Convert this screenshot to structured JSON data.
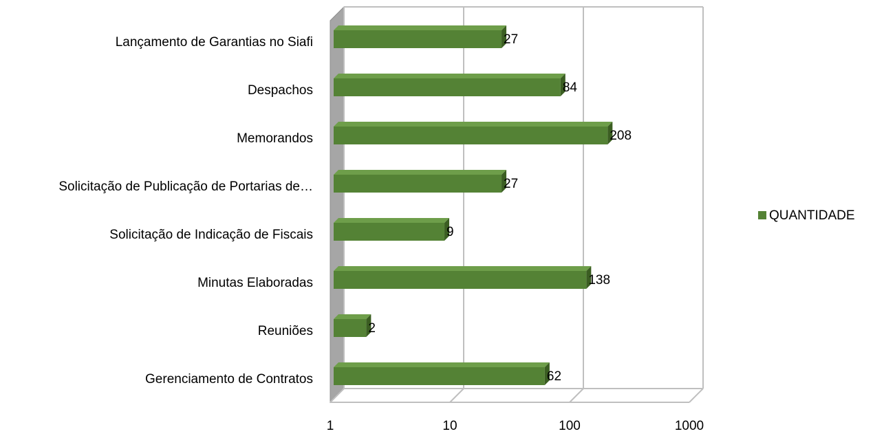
{
  "chart_data": {
    "type": "bar3d_horizontal",
    "categories": [
      "Lançamento de Garantias no Siafi",
      "Despachos",
      "Memorandos",
      "Solicitação de Publicação de Portarias de…",
      "Solicitação de Indicação de Fiscais",
      "Minutas Elaboradas",
      "Reuniões",
      "Gerenciamento de Contratos"
    ],
    "series": [
      {
        "name": "QUANTIDADE",
        "color": "#548235",
        "values": [
          27,
          84,
          208,
          27,
          9,
          138,
          2,
          62
        ]
      }
    ],
    "xlim": [
      1,
      1000
    ],
    "xticks": [
      1,
      10,
      100,
      1000
    ],
    "xscale": "log",
    "grid": true,
    "legend": "right"
  }
}
